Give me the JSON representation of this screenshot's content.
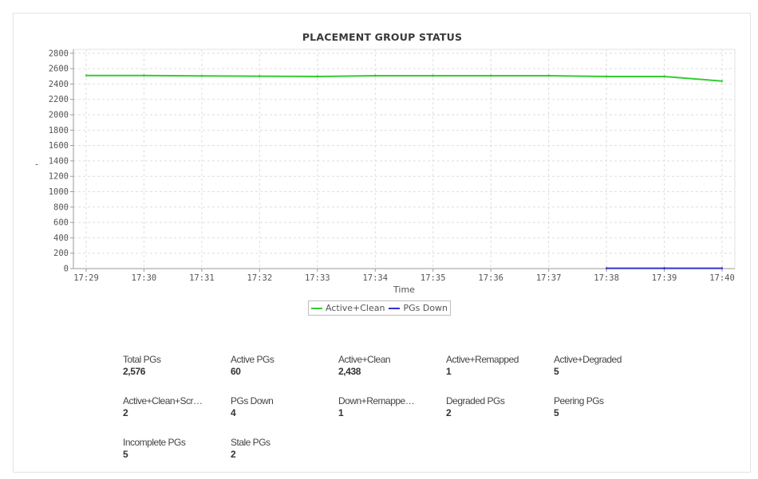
{
  "chart_data": {
    "type": "line",
    "title": "PLACEMENT GROUP STATUS",
    "xlabel": "Time",
    "ylabel": "-",
    "categories": [
      "17:29",
      "17:30",
      "17:31",
      "17:32",
      "17:33",
      "17:34",
      "17:35",
      "17:36",
      "17:37",
      "17:38",
      "17:39",
      "17:40"
    ],
    "ylim": [
      0,
      2850
    ],
    "yticks": [
      0,
      200,
      400,
      600,
      800,
      1000,
      1200,
      1400,
      1600,
      1800,
      2000,
      2200,
      2400,
      2600,
      2800
    ],
    "grid": true,
    "legend_position": "bottom",
    "series": [
      {
        "name": "Active+Clean",
        "color": "#33cc33",
        "values": [
          2510,
          2510,
          2505,
          2502,
          2498,
          2508,
          2508,
          2508,
          2508,
          2498,
          2498,
          2438
        ]
      },
      {
        "name": "PGs Down",
        "color": "#3333cc",
        "values": [
          null,
          null,
          null,
          null,
          null,
          null,
          null,
          null,
          null,
          4,
          4,
          4
        ]
      }
    ]
  },
  "stats": [
    {
      "label": "Total PGs",
      "value": "2,576"
    },
    {
      "label": "Active PGs",
      "value": "60"
    },
    {
      "label": "Active+Clean",
      "value": "2,438"
    },
    {
      "label": "Active+Remapped",
      "value": "1"
    },
    {
      "label": "Active+Degraded",
      "value": "5"
    },
    {
      "label": "Active+Clean+Scr…",
      "value": "2"
    },
    {
      "label": "PGs Down",
      "value": "4"
    },
    {
      "label": "Down+Remappe…",
      "value": "1"
    },
    {
      "label": "Degraded PGs",
      "value": "2"
    },
    {
      "label": "Peering PGs",
      "value": "5"
    },
    {
      "label": "Incomplete PGs",
      "value": "5"
    },
    {
      "label": "Stale PGs",
      "value": "2"
    }
  ]
}
